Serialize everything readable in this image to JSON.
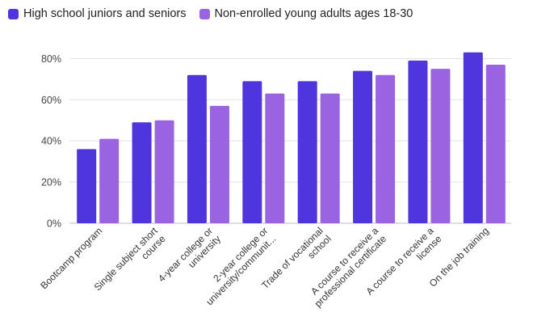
{
  "chart_data": {
    "type": "bar",
    "categories": [
      [
        "Bootcamp program"
      ],
      [
        "Single subject short",
        "course"
      ],
      [
        "4-year college or",
        "university"
      ],
      [
        "2-year college or",
        "university/communit..."
      ],
      [
        "Trade of vocational",
        "school"
      ],
      [
        "A course to receive a",
        "professional certificate"
      ],
      [
        "A course to receive a",
        "license"
      ],
      [
        "On the job training"
      ]
    ],
    "series": [
      {
        "name": "High school juniors and seniors",
        "color": "#4f35de",
        "values": [
          36,
          49,
          72,
          69,
          69,
          74,
          79,
          83
        ]
      },
      {
        "name": "Non-enrolled young adults ages 18-30",
        "color": "#9a63e2",
        "values": [
          41,
          50,
          57,
          63,
          63,
          72,
          75,
          77
        ]
      }
    ],
    "yticks": [
      "0%",
      "20%",
      "40%",
      "60%",
      "80%"
    ],
    "ytick_values": [
      0,
      20,
      40,
      60,
      80
    ],
    "ylim": [
      0,
      88
    ],
    "grid": true,
    "legend_position": "top-left"
  }
}
